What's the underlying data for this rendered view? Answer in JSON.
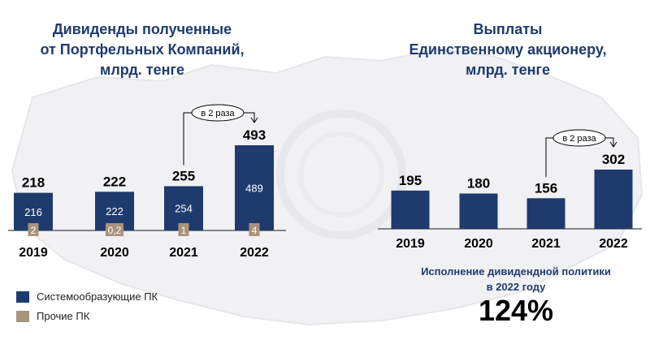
{
  "colors": {
    "main": "#1f3b6e",
    "other": "#a8947a"
  },
  "left": {
    "title": "Дивиденды полученные\nот Портфельных Компаний,\nмлрд. тенге"
  },
  "right": {
    "title": "Выплаты\nЕдинственному акционеру,\nмлрд. тенге"
  },
  "legend": [
    {
      "label": "Системообразующие ПК",
      "color": "#1f3b6e"
    },
    {
      "label": "Прочие ПК",
      "color": "#a8947a"
    }
  ],
  "policy": {
    "text": "Исполнение дивидендной политики\nв 2022 году",
    "value": "124%"
  },
  "chart_data": [
    {
      "type": "bar",
      "stacked": true,
      "categories": [
        "2019",
        "2020",
        "2021",
        "2022"
      ],
      "totals": [
        218,
        222,
        255,
        493
      ],
      "series": [
        {
          "name": "Системообразующие ПК",
          "values": [
            216,
            222,
            254,
            489
          ],
          "labels": [
            "216",
            "222",
            "254",
            "489"
          ]
        },
        {
          "name": "Прочие ПК",
          "values": [
            2,
            0.2,
            1,
            4
          ],
          "labels": [
            "2",
            "0,2",
            "1",
            "4"
          ]
        }
      ],
      "annotation": {
        "text": "в 2 раза",
        "from": "2021",
        "to": "2022"
      }
    },
    {
      "type": "bar",
      "categories": [
        "2019",
        "2020",
        "2021",
        "2022"
      ],
      "values": [
        195,
        180,
        156,
        302
      ],
      "annotation": {
        "text": "в 2 раза",
        "from": "2021",
        "to": "2022"
      }
    }
  ]
}
